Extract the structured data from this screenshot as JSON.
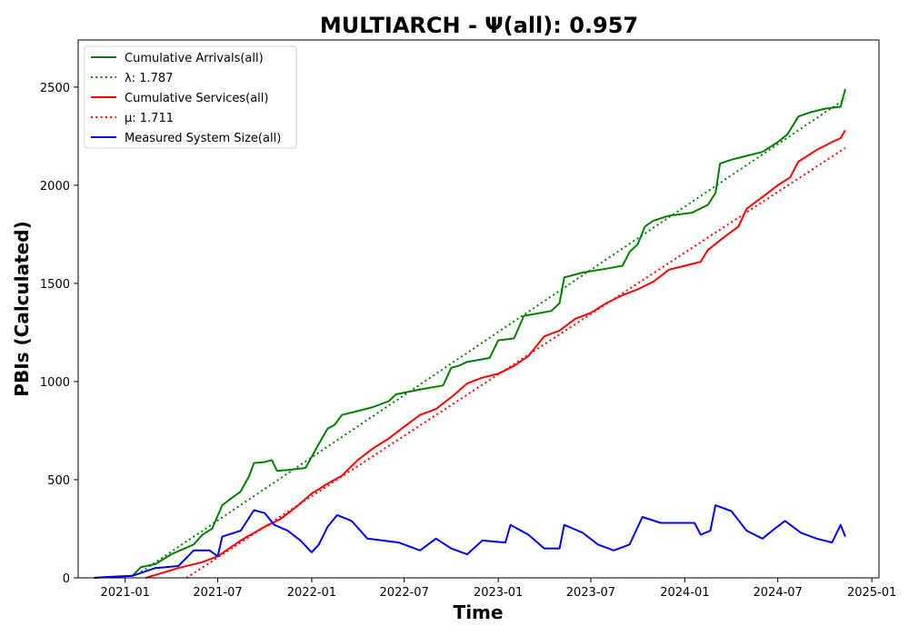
{
  "chart_data": {
    "type": "line",
    "title": "MULTIARCH -  Ψ(all): 0.957",
    "xlabel": "Time",
    "ylabel": "PBIs (Calculated)",
    "xlim": [
      "2020-10-01",
      "2025-01-15"
    ],
    "ylim": [
      0,
      2740
    ],
    "x_ticks": [
      "2021-01",
      "2021-07",
      "2022-01",
      "2022-07",
      "2023-01",
      "2023-07",
      "2024-01",
      "2024-07",
      "2025-01"
    ],
    "y_ticks": [
      0,
      500,
      1000,
      1500,
      2000,
      2500
    ],
    "grid": false,
    "legend_position": "top-left",
    "series": [
      {
        "name": "Cumulative Arrivals(all)",
        "style": "solid",
        "color": "#008000",
        "points": [
          [
            "2020-11-01",
            0
          ],
          [
            "2021-01-15",
            10
          ],
          [
            "2021-02-01",
            55
          ],
          [
            "2021-03-01",
            70
          ],
          [
            "2021-04-01",
            120
          ],
          [
            "2021-05-15",
            170
          ],
          [
            "2021-06-01",
            220
          ],
          [
            "2021-06-20",
            250
          ],
          [
            "2021-07-10",
            370
          ],
          [
            "2021-07-25",
            400
          ],
          [
            "2021-08-15",
            440
          ],
          [
            "2021-09-01",
            520
          ],
          [
            "2021-09-10",
            585
          ],
          [
            "2021-10-01",
            590
          ],
          [
            "2021-10-15",
            600
          ],
          [
            "2021-10-25",
            545
          ],
          [
            "2021-11-15",
            550
          ],
          [
            "2021-12-20",
            560
          ],
          [
            "2022-01-10",
            660
          ],
          [
            "2022-02-01",
            760
          ],
          [
            "2022-02-15",
            780
          ],
          [
            "2022-03-01",
            830
          ],
          [
            "2022-04-01",
            850
          ],
          [
            "2022-05-01",
            870
          ],
          [
            "2022-06-01",
            900
          ],
          [
            "2022-06-15",
            935
          ],
          [
            "2022-08-01",
            960
          ],
          [
            "2022-09-15",
            980
          ],
          [
            "2022-10-01",
            1070
          ],
          [
            "2022-10-15",
            1080
          ],
          [
            "2022-11-01",
            1100
          ],
          [
            "2022-12-15",
            1120
          ],
          [
            "2023-01-01",
            1210
          ],
          [
            "2023-02-01",
            1220
          ],
          [
            "2023-02-20",
            1335
          ],
          [
            "2023-03-15",
            1345
          ],
          [
            "2023-04-15",
            1360
          ],
          [
            "2023-05-01",
            1400
          ],
          [
            "2023-05-10",
            1530
          ],
          [
            "2023-06-15",
            1555
          ],
          [
            "2023-08-01",
            1575
          ],
          [
            "2023-09-01",
            1590
          ],
          [
            "2023-09-15",
            1660
          ],
          [
            "2023-10-01",
            1700
          ],
          [
            "2023-10-15",
            1790
          ],
          [
            "2023-11-01",
            1820
          ],
          [
            "2023-12-01",
            1845
          ],
          [
            "2024-01-15",
            1860
          ],
          [
            "2024-02-15",
            1900
          ],
          [
            "2024-03-01",
            1960
          ],
          [
            "2024-03-10",
            2110
          ],
          [
            "2024-04-01",
            2130
          ],
          [
            "2024-05-01",
            2150
          ],
          [
            "2024-06-01",
            2170
          ],
          [
            "2024-07-01",
            2220
          ],
          [
            "2024-07-20",
            2260
          ],
          [
            "2024-08-10",
            2350
          ],
          [
            "2024-09-01",
            2370
          ],
          [
            "2024-10-01",
            2390
          ],
          [
            "2024-11-01",
            2400
          ],
          [
            "2024-11-10",
            2490
          ]
        ]
      },
      {
        "name": "λ: 1.787",
        "style": "dotted",
        "color": "#008000",
        "points": [
          [
            "2021-02-01",
            30
          ],
          [
            "2024-11-10",
            2440
          ]
        ]
      },
      {
        "name": "Cumulative Services(all)",
        "style": "solid",
        "color": "#ff0000",
        "points": [
          [
            "2021-02-10",
            0
          ],
          [
            "2021-03-01",
            15
          ],
          [
            "2021-04-15",
            50
          ],
          [
            "2021-06-01",
            80
          ],
          [
            "2021-07-01",
            110
          ],
          [
            "2021-08-15",
            190
          ],
          [
            "2021-10-01",
            260
          ],
          [
            "2021-11-01",
            300
          ],
          [
            "2021-12-01",
            360
          ],
          [
            "2022-01-01",
            430
          ],
          [
            "2022-02-01",
            480
          ],
          [
            "2022-03-01",
            520
          ],
          [
            "2022-04-01",
            600
          ],
          [
            "2022-05-01",
            660
          ],
          [
            "2022-06-01",
            710
          ],
          [
            "2022-07-01",
            770
          ],
          [
            "2022-08-01",
            830
          ],
          [
            "2022-09-01",
            860
          ],
          [
            "2022-10-01",
            920
          ],
          [
            "2022-11-01",
            990
          ],
          [
            "2022-12-01",
            1020
          ],
          [
            "2023-01-01",
            1040
          ],
          [
            "2023-02-01",
            1080
          ],
          [
            "2023-03-01",
            1130
          ],
          [
            "2023-04-01",
            1230
          ],
          [
            "2023-05-01",
            1260
          ],
          [
            "2023-06-01",
            1320
          ],
          [
            "2023-07-01",
            1350
          ],
          [
            "2023-08-01",
            1400
          ],
          [
            "2023-09-01",
            1440
          ],
          [
            "2023-10-01",
            1470
          ],
          [
            "2023-11-01",
            1510
          ],
          [
            "2023-12-01",
            1570
          ],
          [
            "2024-01-01",
            1590
          ],
          [
            "2024-02-01",
            1610
          ],
          [
            "2024-02-15",
            1670
          ],
          [
            "2024-03-15",
            1730
          ],
          [
            "2024-04-15",
            1790
          ],
          [
            "2024-05-01",
            1880
          ],
          [
            "2024-06-01",
            1940
          ],
          [
            "2024-07-01",
            2000
          ],
          [
            "2024-07-25",
            2040
          ],
          [
            "2024-08-10",
            2120
          ],
          [
            "2024-09-15",
            2180
          ],
          [
            "2024-10-15",
            2220
          ],
          [
            "2024-11-01",
            2240
          ],
          [
            "2024-11-10",
            2280
          ]
        ]
      },
      {
        "name": "μ: 1.711",
        "style": "dotted",
        "color": "#ff0000",
        "points": [
          [
            "2021-05-01",
            0
          ],
          [
            "2024-11-10",
            2190
          ]
        ]
      },
      {
        "name": "Measured System Size(all)",
        "style": "solid",
        "color": "#0000ff",
        "points": [
          [
            "2020-11-01",
            0
          ],
          [
            "2020-12-01",
            5
          ],
          [
            "2021-01-15",
            10
          ],
          [
            "2021-03-01",
            50
          ],
          [
            "2021-04-15",
            60
          ],
          [
            "2021-05-15",
            140
          ],
          [
            "2021-06-15",
            140
          ],
          [
            "2021-07-01",
            110
          ],
          [
            "2021-07-10",
            210
          ],
          [
            "2021-08-15",
            240
          ],
          [
            "2021-09-10",
            345
          ],
          [
            "2021-10-01",
            330
          ],
          [
            "2021-10-20",
            270
          ],
          [
            "2021-11-15",
            240
          ],
          [
            "2021-12-10",
            190
          ],
          [
            "2022-01-01",
            130
          ],
          [
            "2022-01-15",
            170
          ],
          [
            "2022-02-01",
            260
          ],
          [
            "2022-02-20",
            320
          ],
          [
            "2022-03-20",
            290
          ],
          [
            "2022-04-20",
            200
          ],
          [
            "2022-05-20",
            190
          ],
          [
            "2022-06-20",
            180
          ],
          [
            "2022-08-01",
            140
          ],
          [
            "2022-09-01",
            200
          ],
          [
            "2022-10-01",
            150
          ],
          [
            "2022-11-01",
            120
          ],
          [
            "2022-12-01",
            190
          ],
          [
            "2023-01-15",
            180
          ],
          [
            "2023-01-25",
            270
          ],
          [
            "2023-03-01",
            220
          ],
          [
            "2023-04-01",
            150
          ],
          [
            "2023-05-01",
            150
          ],
          [
            "2023-05-10",
            270
          ],
          [
            "2023-06-15",
            230
          ],
          [
            "2023-07-15",
            170
          ],
          [
            "2023-08-15",
            140
          ],
          [
            "2023-09-15",
            170
          ],
          [
            "2023-10-10",
            310
          ],
          [
            "2023-11-15",
            280
          ],
          [
            "2024-01-01",
            280
          ],
          [
            "2024-01-20",
            280
          ],
          [
            "2024-02-01",
            220
          ],
          [
            "2024-02-20",
            240
          ],
          [
            "2024-03-01",
            370
          ],
          [
            "2024-04-01",
            340
          ],
          [
            "2024-05-01",
            240
          ],
          [
            "2024-06-01",
            200
          ],
          [
            "2024-06-20",
            240
          ],
          [
            "2024-07-15",
            290
          ],
          [
            "2024-08-15",
            230
          ],
          [
            "2024-09-15",
            200
          ],
          [
            "2024-10-15",
            180
          ],
          [
            "2024-11-01",
            270
          ],
          [
            "2024-11-10",
            210
          ]
        ]
      }
    ]
  }
}
